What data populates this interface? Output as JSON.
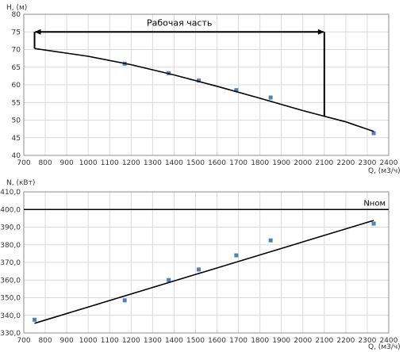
{
  "chart_data": [
    {
      "type": "scatter",
      "title": "",
      "xlabel": "Q, (м3/ч)",
      "ylabel": "H, (м)",
      "xlim": [
        700,
        2400
      ],
      "ylim": [
        40,
        80
      ],
      "x_ticks": [
        700,
        800,
        900,
        1000,
        1100,
        1200,
        1300,
        1400,
        1500,
        1600,
        1700,
        1800,
        1900,
        2000,
        2100,
        2200,
        2300,
        2400
      ],
      "y_ticks": [
        40,
        45,
        50,
        55,
        60,
        65,
        70,
        75,
        80
      ],
      "y_tick_labels": [
        "40",
        "45",
        "50",
        "55",
        "60",
        "65",
        "70",
        "75",
        "80"
      ],
      "grid": true,
      "series": [
        {
          "type": "scatter",
          "x": [
            1170,
            1375,
            1515,
            1690,
            1850,
            2330
          ],
          "y": [
            66,
            63.3,
            61.2,
            58.5,
            56.4,
            46.3
          ]
        },
        {
          "type": "line",
          "x": [
            750,
            1000,
            1200,
            1400,
            1600,
            1800,
            2000,
            2100,
            2200,
            2330
          ],
          "y": [
            70.3,
            68.1,
            65.7,
            62.8,
            59.6,
            56.2,
            52.7,
            51.1,
            49.5,
            46.8
          ]
        }
      ],
      "annotations": [
        {
          "text": "Рабочая часть",
          "type": "range",
          "x_start": 750,
          "x_end": 2100,
          "y_level": 75,
          "verticals": [
            {
              "x": 750,
              "y_bottom": 70.3,
              "y_top": 75
            },
            {
              "x": 2100,
              "y_bottom": 51.1,
              "y_top": 75
            }
          ]
        }
      ]
    },
    {
      "type": "scatter",
      "title": "",
      "xlabel": "Q, (м3/ч)",
      "ylabel": "N, (кВт)",
      "xlim": [
        700,
        2400
      ],
      "ylim": [
        330,
        410
      ],
      "x_ticks": [
        700,
        800,
        900,
        1000,
        1100,
        1200,
        1300,
        1400,
        1500,
        1600,
        1700,
        1800,
        1900,
        2000,
        2100,
        2200,
        2300,
        2400
      ],
      "y_ticks": [
        330,
        340,
        350,
        360,
        370,
        380,
        390,
        400,
        410
      ],
      "y_tick_labels": [
        "330,0",
        "340,0",
        "350,0",
        "360,0",
        "370,0",
        "380,0",
        "390,0",
        "400,0",
        "410,0"
      ],
      "grid": true,
      "series": [
        {
          "type": "scatter",
          "x": [
            750,
            1170,
            1375,
            1515,
            1690,
            1850,
            2330
          ],
          "y": [
            337.5,
            348.5,
            360,
            366,
            374,
            382.5,
            392
          ]
        },
        {
          "type": "line",
          "x": [
            750,
            2330
          ],
          "y": [
            335.5,
            393.8
          ]
        }
      ],
      "reference_lines": [
        {
          "label": "Nном",
          "y": 400
        }
      ]
    }
  ]
}
